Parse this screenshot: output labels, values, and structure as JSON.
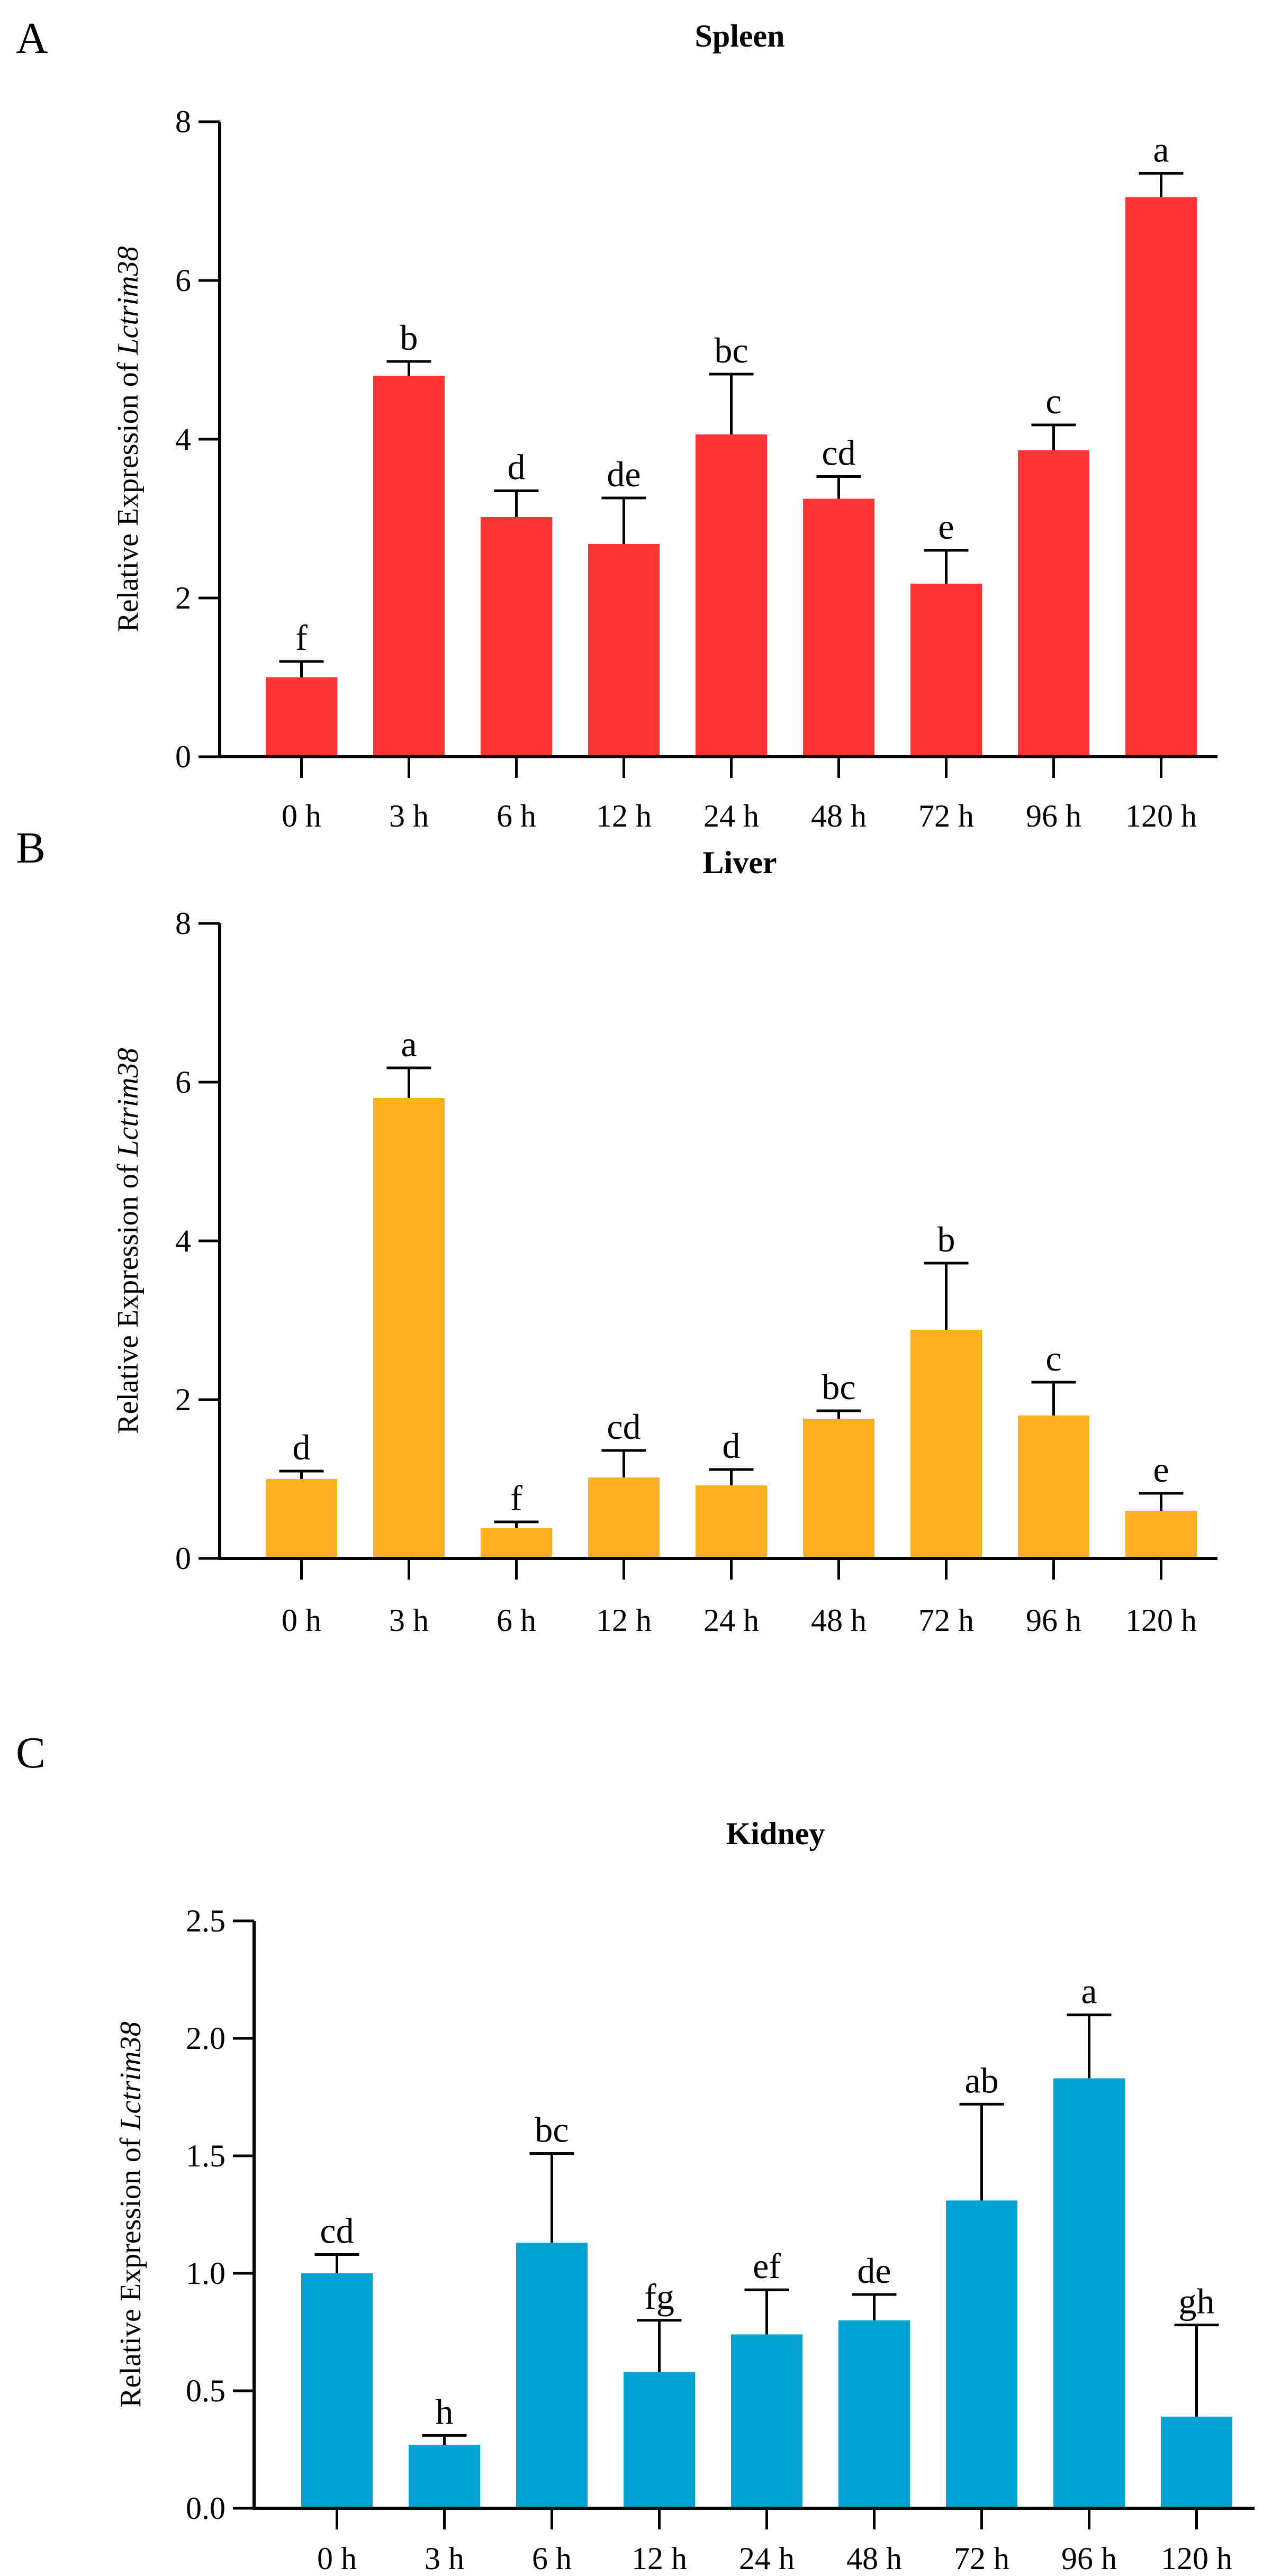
{
  "chart_data": [
    {
      "type": "bar",
      "panel": "A",
      "title": "Spleen",
      "ylabel_prefix": "Relative Expression of ",
      "ylabel_gene": "Lctrim38",
      "xlabel": "",
      "categories": [
        "0 h",
        "3 h",
        "6 h",
        "12 h",
        "24 h",
        "48 h",
        "72 h",
        "96 h",
        "120 h"
      ],
      "values": [
        1.0,
        4.8,
        3.02,
        2.68,
        4.06,
        3.25,
        2.18,
        3.86,
        7.05
      ],
      "errors": [
        0.2,
        0.18,
        0.33,
        0.58,
        0.76,
        0.28,
        0.42,
        0.32,
        0.3
      ],
      "letters": [
        "f",
        "b",
        "d",
        "de",
        "bc",
        "cd",
        "e",
        "c",
        "a"
      ],
      "ylim": [
        0,
        8
      ],
      "yticks": [
        0,
        2,
        4,
        6,
        8
      ],
      "ytick_labels": [
        "0",
        "2",
        "4",
        "6",
        "8"
      ],
      "color": "#FF3535"
    },
    {
      "type": "bar",
      "panel": "B",
      "title": "Liver",
      "ylabel_prefix": "Relative Expression of ",
      "ylabel_gene": "Lctrim38",
      "xlabel": "",
      "categories": [
        "0 h",
        "3 h",
        "6 h",
        "12 h",
        "24 h",
        "48 h",
        "72 h",
        "96 h",
        "120 h"
      ],
      "values": [
        1.0,
        5.8,
        0.38,
        1.02,
        0.92,
        1.76,
        2.88,
        1.8,
        0.6
      ],
      "errors": [
        0.1,
        0.38,
        0.08,
        0.34,
        0.2,
        0.1,
        0.84,
        0.42,
        0.22
      ],
      "letters": [
        "d",
        "a",
        "f",
        "cd",
        "d",
        "bc",
        "b",
        "c",
        "e"
      ],
      "ylim": [
        0,
        8
      ],
      "yticks": [
        0,
        2,
        4,
        6,
        8
      ],
      "ytick_labels": [
        "0",
        "2",
        "4",
        "6",
        "8"
      ],
      "color": "#FFB020"
    },
    {
      "type": "bar",
      "panel": "C",
      "title": "Kidney",
      "ylabel_prefix": "Relative Expression of ",
      "ylabel_gene": "Lctrim38",
      "xlabel": "",
      "categories": [
        "0 h",
        "3 h",
        "6 h",
        "12 h",
        "24 h",
        "48 h",
        "72 h",
        "96 h",
        "120 h"
      ],
      "values": [
        1.0,
        0.27,
        1.13,
        0.58,
        0.74,
        0.8,
        1.31,
        1.83,
        0.39
      ],
      "errors": [
        0.08,
        0.04,
        0.38,
        0.22,
        0.19,
        0.11,
        0.41,
        0.27,
        0.39
      ],
      "letters": [
        "cd",
        "h",
        "bc",
        "fg",
        "ef",
        "de",
        "ab",
        "a",
        "gh"
      ],
      "ylim": [
        0,
        2.5
      ],
      "yticks": [
        0,
        0.5,
        1.0,
        1.5,
        2.0,
        2.5
      ],
      "ytick_labels": [
        "0.0",
        "0.5",
        "1.0",
        "1.5",
        "2.0",
        "2.5"
      ],
      "color": "#00A3D2"
    }
  ]
}
